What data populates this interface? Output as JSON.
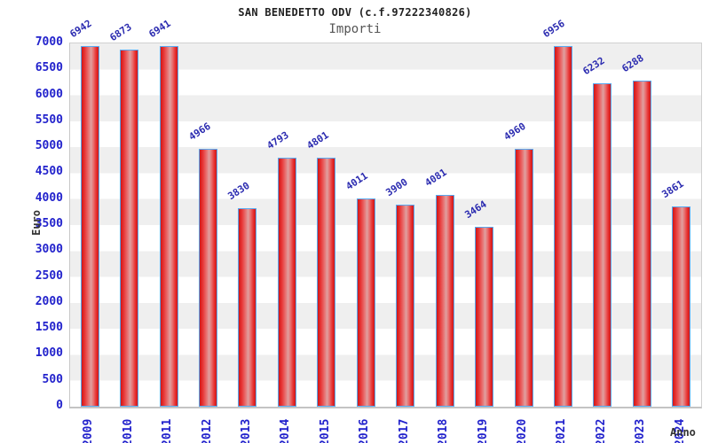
{
  "title": "SAN BENEDETTO ODV (c.f.97222340826)",
  "subtitle": "Importi",
  "chart_data": {
    "type": "bar",
    "title": "SAN BENEDETTO ODV (c.f.97222340826)",
    "subtitle": "Importi",
    "categories": [
      "2009",
      "2010",
      "2011",
      "2012",
      "2013",
      "2014",
      "2015",
      "2016",
      "2017",
      "2018",
      "2019",
      "2020",
      "2021",
      "2022",
      "2023",
      "2024"
    ],
    "values": [
      6942,
      6873,
      6941,
      4966,
      3830,
      4793,
      4801,
      4011,
      3900,
      4081,
      3464,
      4960,
      6956,
      6232,
      6288,
      3861
    ],
    "xlabel": "Anno",
    "ylabel": "Euro",
    "ylim": [
      0,
      7000
    ],
    "ytick_step": 500,
    "yticks": [
      "0",
      "500",
      "1000",
      "1500",
      "2000",
      "2500",
      "3000",
      "3500",
      "4000",
      "4500",
      "5000",
      "5500",
      "6000",
      "6500",
      "7000"
    ],
    "grid": "horizontal-bands",
    "legend": "none",
    "colors": {
      "bar_fill": "#e02020",
      "bar_highlight": "#dfa0a0",
      "bar_border": "#58a8f0",
      "value_label": "#2b2bb0",
      "axis_tick_text": "#2222cc",
      "axis_title_text": "#333333",
      "title_text": "#222222",
      "subtitle_text": "#555555",
      "band_gray": "#efefef",
      "band_white": "#ffffff",
      "plot_border": "#c8c8c8"
    }
  }
}
